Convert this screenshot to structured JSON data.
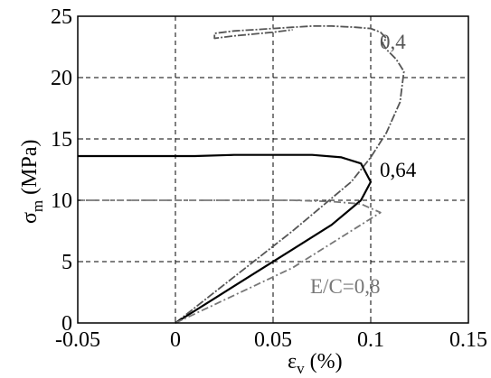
{
  "chart_data": {
    "type": "line",
    "xlabel": "ε_v (%)",
    "ylabel": "σ_m (MPa)",
    "xlim": [
      -0.05,
      0.15
    ],
    "ylim": [
      0,
      25
    ],
    "xticks": [
      -0.05,
      0,
      0.05,
      0.1,
      0.15
    ],
    "xtick_labels": [
      "-0.05",
      "0",
      "0.05",
      "0.1",
      "0.15"
    ],
    "yticks": [
      0,
      5,
      10,
      15,
      20,
      25
    ],
    "ytick_labels": [
      "0",
      "5",
      "10",
      "15",
      "20",
      "25"
    ],
    "grid": true,
    "annotations": [
      {
        "text": "0,4",
        "color": "#555555"
      },
      {
        "text": "0,64",
        "color": "#000000"
      },
      {
        "text": "E/C=0,8",
        "color": "#777777"
      }
    ],
    "series": [
      {
        "color": "#555555",
        "x": [
          0,
          0.02,
          0.04,
          0.06,
          0.075,
          0.09,
          0.1,
          0.108,
          0.115,
          0.117,
          0.113,
          0.108,
          0.106,
          0.108,
          0.105,
          0.1,
          0.092,
          0.08,
          0.07,
          0.06,
          0.05,
          0.04,
          0.03,
          0.02,
          0.02,
          0.03,
          0.05,
          0.06
        ],
        "y": [
          0,
          2.5,
          5,
          7.5,
          9.5,
          11.5,
          13.5,
          15.5,
          18,
          20.5,
          21.5,
          22.3,
          22.8,
          23.2,
          23.7,
          24,
          24.1,
          24.2,
          24.2,
          24.1,
          24,
          23.9,
          23.8,
          23.6,
          23.2,
          23.4,
          23.7,
          23.9
        ]
      },
      {
        "color": "#000000",
        "x": [
          0,
          0.02,
          0.04,
          0.06,
          0.08,
          0.095,
          0.1,
          0.095,
          0.085,
          0.07,
          0.05,
          0.03,
          0.01,
          -0.02,
          -0.05
        ],
        "y": [
          0,
          2,
          4,
          6,
          8,
          10,
          11.5,
          13,
          13.5,
          13.7,
          13.7,
          13.7,
          13.6,
          13.6,
          13.6
        ]
      },
      {
        "color": "#777777",
        "x": [
          0,
          0.02,
          0.04,
          0.06,
          0.08,
          0.1,
          0.105,
          0.095,
          0.08,
          0.06,
          0.04,
          0.02,
          0,
          -0.03,
          -0.05
        ],
        "y": [
          0,
          1.5,
          3,
          4.5,
          6.5,
          8.5,
          9,
          9.7,
          9.9,
          10,
          10,
          10,
          10,
          10,
          10
        ]
      }
    ]
  }
}
